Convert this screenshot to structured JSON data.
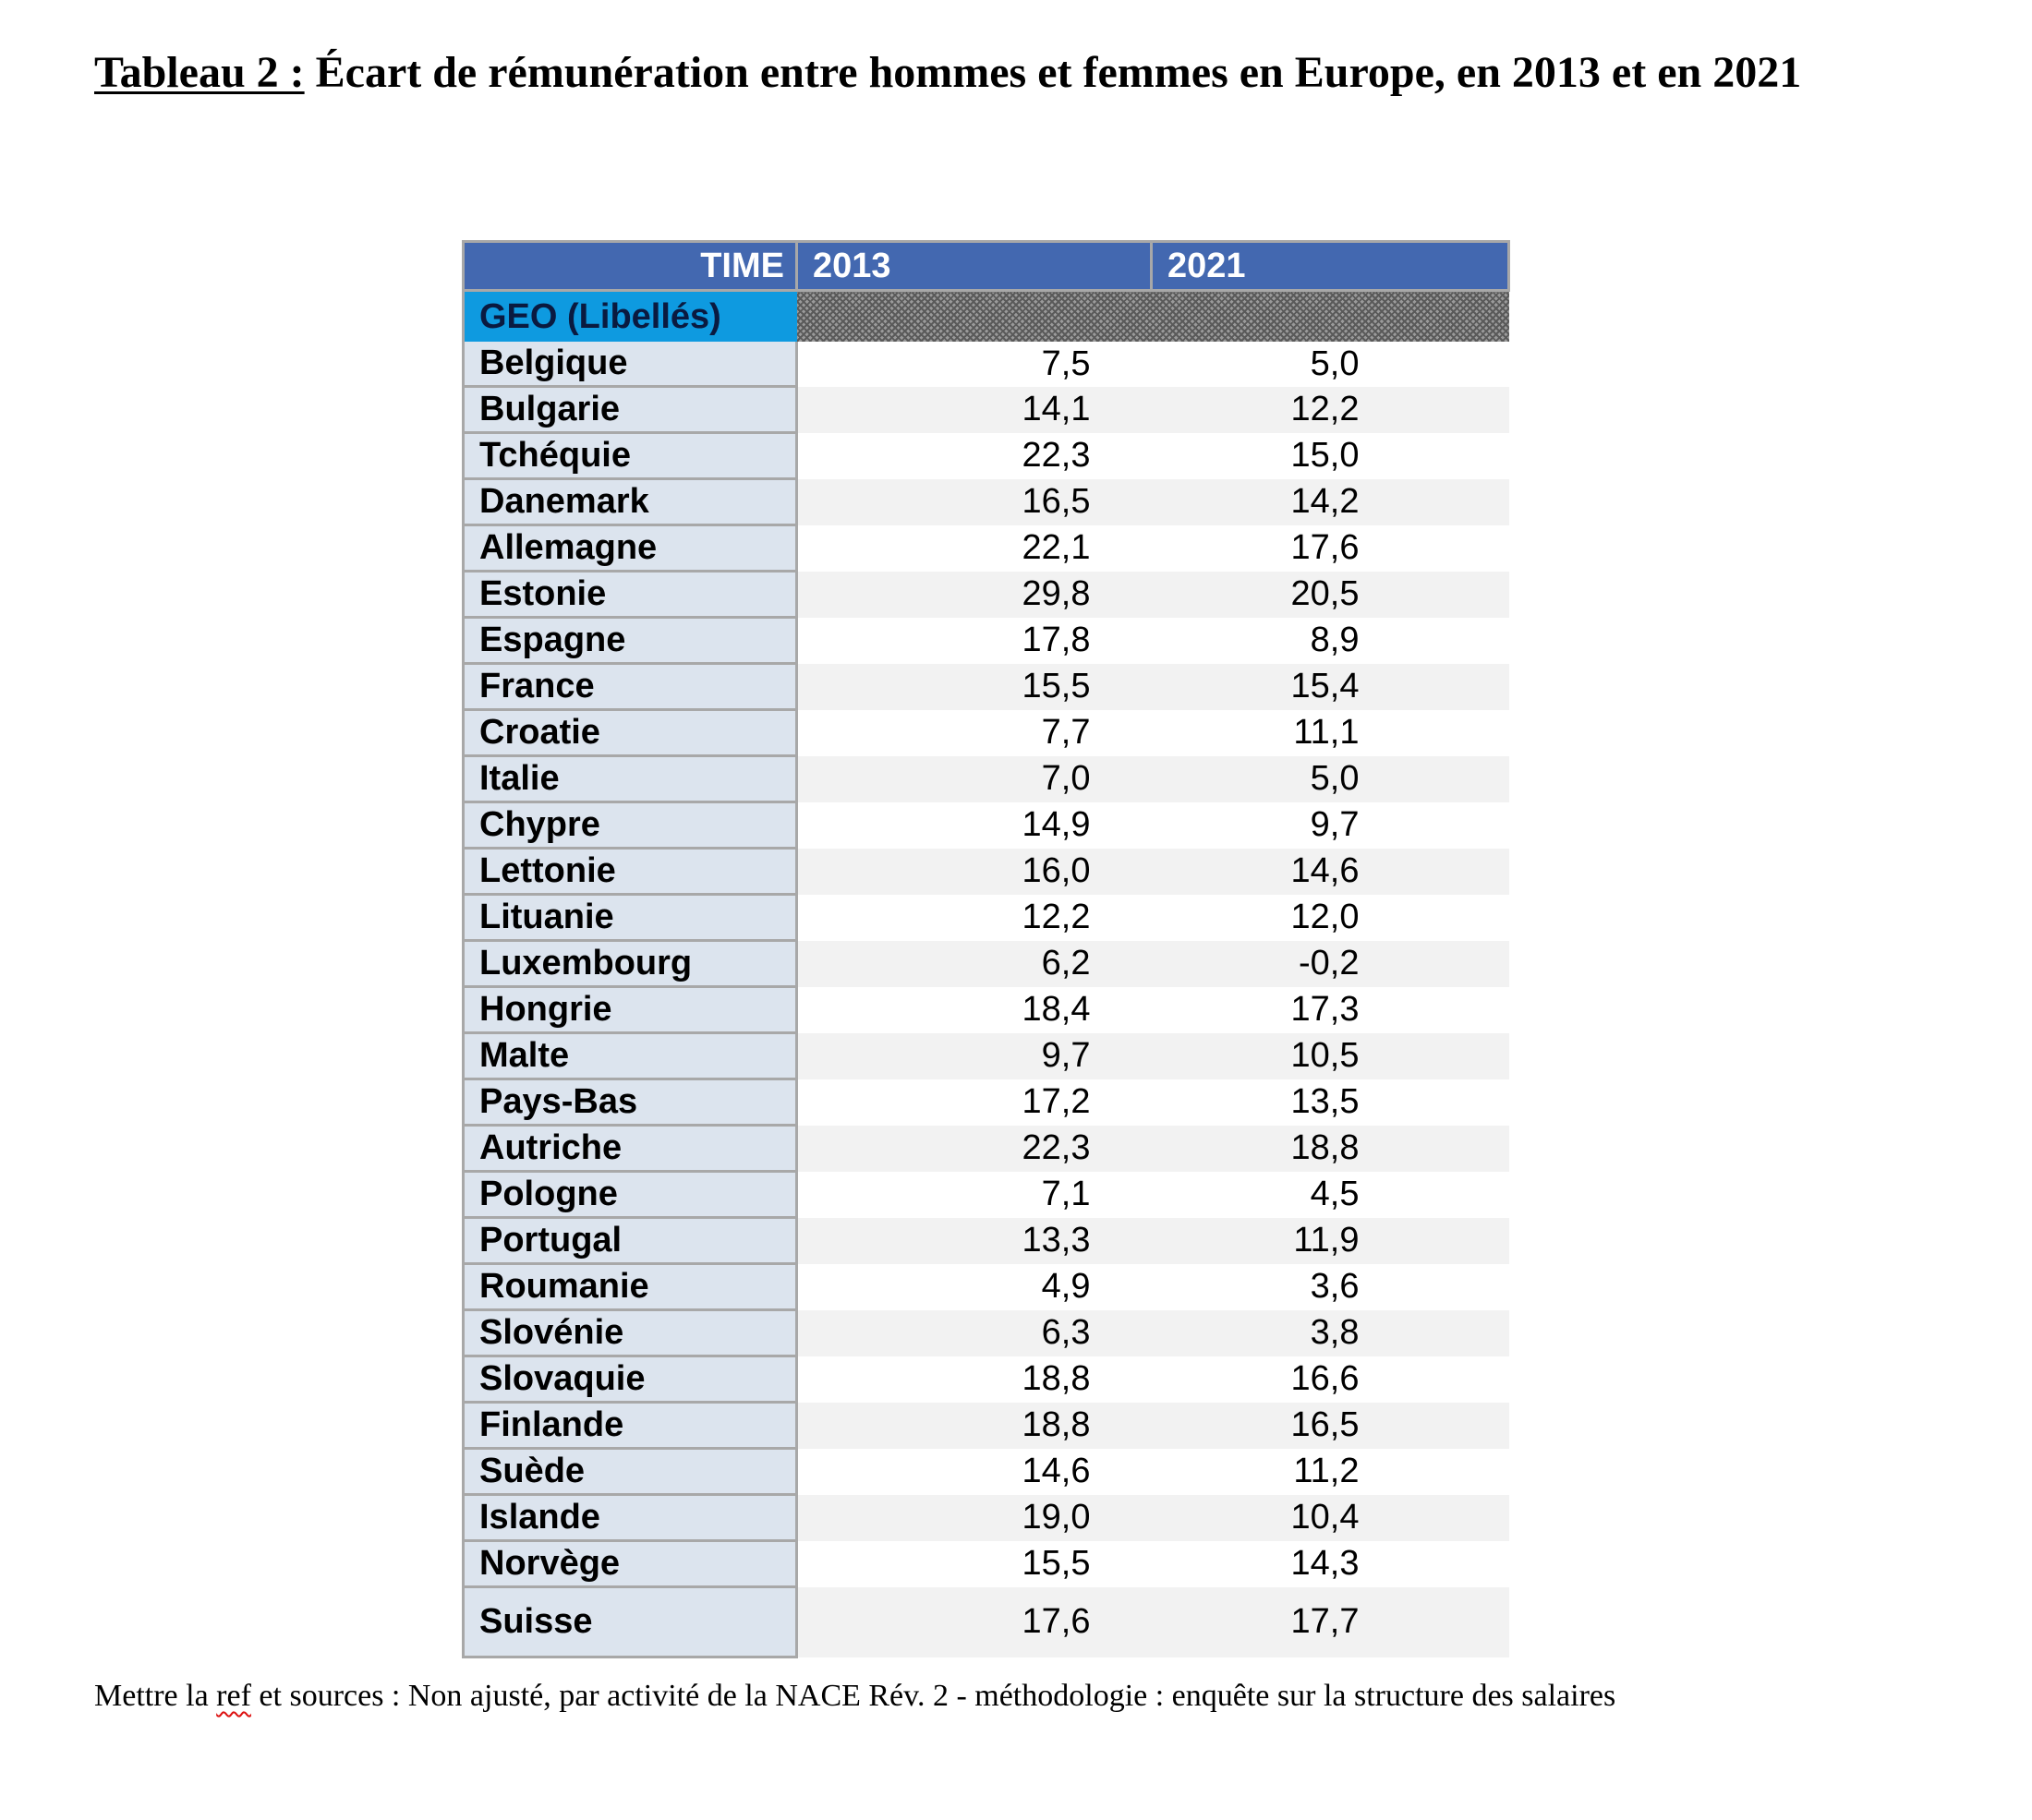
{
  "title": {
    "prefix": "Tableau 2 :",
    "text": " Écart de rémunération entre hommes et femmes en Europe, en 2013 et en 2021"
  },
  "table": {
    "header": {
      "time_label": "TIME",
      "year1": "2013",
      "year2": "2021"
    },
    "geo_label": "GEO (Libellés)",
    "rows": [
      {
        "country": "Belgique",
        "y2013": "7,5",
        "y2021": "5,0"
      },
      {
        "country": "Bulgarie",
        "y2013": "14,1",
        "y2021": "12,2"
      },
      {
        "country": "Tchéquie",
        "y2013": "22,3",
        "y2021": "15,0"
      },
      {
        "country": "Danemark",
        "y2013": "16,5",
        "y2021": "14,2"
      },
      {
        "country": "Allemagne",
        "y2013": "22,1",
        "y2021": "17,6"
      },
      {
        "country": "Estonie",
        "y2013": "29,8",
        "y2021": "20,5"
      },
      {
        "country": "Espagne",
        "y2013": "17,8",
        "y2021": "8,9"
      },
      {
        "country": "France",
        "y2013": "15,5",
        "y2021": "15,4"
      },
      {
        "country": "Croatie",
        "y2013": "7,7",
        "y2021": "11,1"
      },
      {
        "country": "Italie",
        "y2013": "7,0",
        "y2021": "5,0"
      },
      {
        "country": "Chypre",
        "y2013": "14,9",
        "y2021": "9,7"
      },
      {
        "country": "Lettonie",
        "y2013": "16,0",
        "y2021": "14,6"
      },
      {
        "country": "Lituanie",
        "y2013": "12,2",
        "y2021": "12,0"
      },
      {
        "country": "Luxembourg",
        "y2013": "6,2",
        "y2021": "-0,2"
      },
      {
        "country": "Hongrie",
        "y2013": "18,4",
        "y2021": "17,3"
      },
      {
        "country": "Malte",
        "y2013": "9,7",
        "y2021": "10,5"
      },
      {
        "country": "Pays-Bas",
        "y2013": "17,2",
        "y2021": "13,5"
      },
      {
        "country": "Autriche",
        "y2013": "22,3",
        "y2021": "18,8"
      },
      {
        "country": "Pologne",
        "y2013": "7,1",
        "y2021": "4,5"
      },
      {
        "country": "Portugal",
        "y2013": "13,3",
        "y2021": "11,9"
      },
      {
        "country": "Roumanie",
        "y2013": "4,9",
        "y2021": "3,6"
      },
      {
        "country": "Slovénie",
        "y2013": "6,3",
        "y2021": "3,8"
      },
      {
        "country": "Slovaquie",
        "y2013": "18,8",
        "y2021": "16,6"
      },
      {
        "country": "Finlande",
        "y2013": "18,8",
        "y2021": "16,5"
      },
      {
        "country": "Suède",
        "y2013": "14,6",
        "y2021": "11,2"
      },
      {
        "country": "Islande",
        "y2013": "19,0",
        "y2021": "10,4"
      },
      {
        "country": "Norvège",
        "y2013": "15,5",
        "y2021": "14,3"
      },
      {
        "country": "Suisse",
        "y2013": "17,6",
        "y2021": "17,7"
      }
    ]
  },
  "footnote": {
    "before": "Mettre la ",
    "flagged_word": "ref",
    "after": " et sources : Non ajusté, par activité de la NACE Rév. 2 - méthodologie : enquête sur la structure des salaires"
  },
  "colors": {
    "header_bg": "#4368b0",
    "geo_label_bg": "#0e9ae0",
    "country_col_bg": "#dce4ee",
    "alt_row_bg": "#f2f2f2",
    "spellcheck_underline": "#dd1111"
  }
}
